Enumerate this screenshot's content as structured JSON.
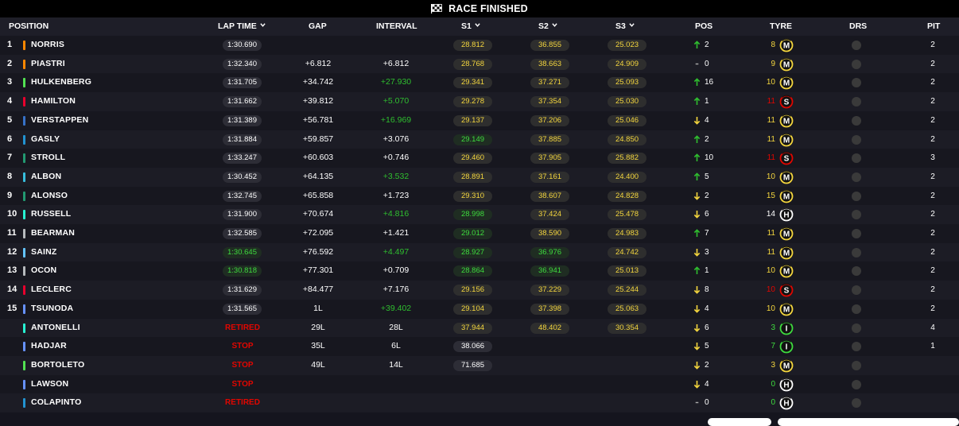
{
  "banner": {
    "title": "RACE FINISHED"
  },
  "columns": {
    "position": "POSITION",
    "lap_time": "LAP TIME",
    "gap": "GAP",
    "interval": "INTERVAL",
    "s1": "S1",
    "s2": "S2",
    "s3": "S3",
    "pos": "POS",
    "tyre": "TYRE",
    "drs": "DRS",
    "pit": "PIT"
  },
  "colors": {
    "green": "#2fbe2f",
    "yellow": "#f4d63e",
    "red": "#e10600",
    "medium": "#f4d63e",
    "soft": "#e10600",
    "hard": "#ffffff",
    "inter": "#3edb3e"
  },
  "rows": [
    {
      "pos": "1",
      "name": "NORRIS",
      "team": "#ff8700",
      "lap": "1:30.690",
      "lap_style": "normal",
      "gap": "",
      "interval": "",
      "interval_green": false,
      "s1": "28.812",
      "s1s": "y",
      "s2": "36.855",
      "s2s": "y",
      "s3": "25.023",
      "s3s": "y",
      "dir": "up",
      "change": "2",
      "tyre_laps": "8",
      "tyre_laps_color": "#f4d63e",
      "tyre": "M",
      "pit": "2"
    },
    {
      "pos": "2",
      "name": "PIASTRI",
      "team": "#ff8700",
      "lap": "1:32.340",
      "lap_style": "normal",
      "gap": "+6.812",
      "interval": "+6.812",
      "interval_green": false,
      "s1": "28.768",
      "s1s": "y",
      "s2": "38.663",
      "s2s": "y",
      "s3": "24.909",
      "s3s": "y",
      "dir": "none",
      "change": "0",
      "tyre_laps": "9",
      "tyre_laps_color": "#f4d63e",
      "tyre": "M",
      "pit": "2"
    },
    {
      "pos": "3",
      "name": "HULKENBERG",
      "team": "#52e252",
      "lap": "1:31.705",
      "lap_style": "normal",
      "gap": "+34.742",
      "interval": "+27.930",
      "interval_green": true,
      "s1": "29.341",
      "s1s": "y",
      "s2": "37.271",
      "s2s": "y",
      "s3": "25.093",
      "s3s": "y",
      "dir": "up",
      "change": "16",
      "tyre_laps": "10",
      "tyre_laps_color": "#f4d63e",
      "tyre": "M",
      "pit": "2"
    },
    {
      "pos": "4",
      "name": "HAMILTON",
      "team": "#e8002d",
      "lap": "1:31.662",
      "lap_style": "normal",
      "gap": "+39.812",
      "interval": "+5.070",
      "interval_green": true,
      "s1": "29.278",
      "s1s": "y",
      "s2": "37.354",
      "s2s": "y",
      "s3": "25.030",
      "s3s": "y",
      "dir": "up",
      "change": "1",
      "tyre_laps": "11",
      "tyre_laps_color": "#e10600",
      "tyre": "S",
      "pit": "2"
    },
    {
      "pos": "5",
      "name": "VERSTAPPEN",
      "team": "#3671c6",
      "lap": "1:31.389",
      "lap_style": "normal",
      "gap": "+56.781",
      "interval": "+16.969",
      "interval_green": true,
      "s1": "29.137",
      "s1s": "y",
      "s2": "37.206",
      "s2s": "y",
      "s3": "25.046",
      "s3s": "y",
      "dir": "down",
      "change": "4",
      "tyre_laps": "11",
      "tyre_laps_color": "#f4d63e",
      "tyre": "M",
      "pit": "2"
    },
    {
      "pos": "6",
      "name": "GASLY",
      "team": "#2293d1",
      "lap": "1:31.884",
      "lap_style": "normal",
      "gap": "+59.857",
      "interval": "+3.076",
      "interval_green": false,
      "s1": "29.149",
      "s1s": "g",
      "s2": "37.885",
      "s2s": "y",
      "s3": "24.850",
      "s3s": "y",
      "dir": "up",
      "change": "2",
      "tyre_laps": "11",
      "tyre_laps_color": "#f4d63e",
      "tyre": "M",
      "pit": "2"
    },
    {
      "pos": "7",
      "name": "STROLL",
      "team": "#229971",
      "lap": "1:33.247",
      "lap_style": "normal",
      "gap": "+60.603",
      "interval": "+0.746",
      "interval_green": false,
      "s1": "29.460",
      "s1s": "y",
      "s2": "37.905",
      "s2s": "y",
      "s3": "25.882",
      "s3s": "y",
      "dir": "up",
      "change": "10",
      "tyre_laps": "11",
      "tyre_laps_color": "#e10600",
      "tyre": "S",
      "pit": "3"
    },
    {
      "pos": "8",
      "name": "ALBON",
      "team": "#37bedd",
      "lap": "1:30.452",
      "lap_style": "normal",
      "gap": "+64.135",
      "interval": "+3.532",
      "interval_green": true,
      "s1": "28.891",
      "s1s": "y",
      "s2": "37.161",
      "s2s": "y",
      "s3": "24.400",
      "s3s": "y",
      "dir": "up",
      "change": "5",
      "tyre_laps": "10",
      "tyre_laps_color": "#f4d63e",
      "tyre": "M",
      "pit": "2"
    },
    {
      "pos": "9",
      "name": "ALONSO",
      "team": "#229971",
      "lap": "1:32.745",
      "lap_style": "normal",
      "gap": "+65.858",
      "interval": "+1.723",
      "interval_green": false,
      "s1": "29.310",
      "s1s": "y",
      "s2": "38.607",
      "s2s": "y",
      "s3": "24.828",
      "s3s": "y",
      "dir": "down",
      "change": "2",
      "tyre_laps": "15",
      "tyre_laps_color": "#f4d63e",
      "tyre": "M",
      "pit": "2"
    },
    {
      "pos": "10",
      "name": "RUSSELL",
      "team": "#27f4d2",
      "lap": "1:31.900",
      "lap_style": "normal",
      "gap": "+70.674",
      "interval": "+4.816",
      "interval_green": true,
      "s1": "28.998",
      "s1s": "g",
      "s2": "37.424",
      "s2s": "y",
      "s3": "25.478",
      "s3s": "y",
      "dir": "down",
      "change": "6",
      "tyre_laps": "14",
      "tyre_laps_color": "#ffffff",
      "tyre": "H",
      "pit": "2"
    },
    {
      "pos": "11",
      "name": "BEARMAN",
      "team": "#b6babd",
      "lap": "1:32.585",
      "lap_style": "normal",
      "gap": "+72.095",
      "interval": "+1.421",
      "interval_green": false,
      "s1": "29.012",
      "s1s": "g",
      "s2": "38.590",
      "s2s": "y",
      "s3": "24.983",
      "s3s": "y",
      "dir": "up",
      "change": "7",
      "tyre_laps": "11",
      "tyre_laps_color": "#f4d63e",
      "tyre": "M",
      "pit": "2"
    },
    {
      "pos": "12",
      "name": "SAINZ",
      "team": "#64c4ff",
      "lap": "1:30.645",
      "lap_style": "best",
      "gap": "+76.592",
      "interval": "+4.497",
      "interval_green": true,
      "s1": "28.927",
      "s1s": "g",
      "s2": "36.976",
      "s2s": "g",
      "s3": "24.742",
      "s3s": "y",
      "dir": "down",
      "change": "3",
      "tyre_laps": "11",
      "tyre_laps_color": "#f4d63e",
      "tyre": "M",
      "pit": "2"
    },
    {
      "pos": "13",
      "name": "OCON",
      "team": "#b6babd",
      "lap": "1:30.818",
      "lap_style": "best",
      "gap": "+77.301",
      "interval": "+0.709",
      "interval_green": false,
      "s1": "28.864",
      "s1s": "g",
      "s2": "36.941",
      "s2s": "g",
      "s3": "25.013",
      "s3s": "y",
      "dir": "up",
      "change": "1",
      "tyre_laps": "10",
      "tyre_laps_color": "#f4d63e",
      "tyre": "M",
      "pit": "2"
    },
    {
      "pos": "14",
      "name": "LECLERC",
      "team": "#e8002d",
      "lap": "1:31.629",
      "lap_style": "normal",
      "gap": "+84.477",
      "interval": "+7.176",
      "interval_green": false,
      "s1": "29.156",
      "s1s": "y",
      "s2": "37.229",
      "s2s": "y",
      "s3": "25.244",
      "s3s": "y",
      "dir": "down",
      "change": "8",
      "tyre_laps": "10",
      "tyre_laps_color": "#e10600",
      "tyre": "S",
      "pit": "2"
    },
    {
      "pos": "15",
      "name": "TSUNODA",
      "team": "#6692ff",
      "lap": "1:31.565",
      "lap_style": "normal",
      "gap": "1L",
      "interval": "+39.402",
      "interval_green": true,
      "s1": "29.104",
      "s1s": "y",
      "s2": "37.398",
      "s2s": "y",
      "s3": "25.063",
      "s3s": "y",
      "dir": "down",
      "change": "4",
      "tyre_laps": "10",
      "tyre_laps_color": "#f4d63e",
      "tyre": "M",
      "pit": "2"
    },
    {
      "pos": "",
      "name": "ANTONELLI",
      "team": "#27f4d2",
      "lap": "RETIRED",
      "lap_style": "status",
      "gap": "29L",
      "interval": "28L",
      "interval_green": false,
      "s1": "37.944",
      "s1s": "y",
      "s2": "48.402",
      "s2s": "y",
      "s3": "30.354",
      "s3s": "y",
      "dir": "down",
      "change": "6",
      "tyre_laps": "3",
      "tyre_laps_color": "#3edb3e",
      "tyre": "I",
      "pit": "4"
    },
    {
      "pos": "",
      "name": "HADJAR",
      "team": "#6692ff",
      "lap": "STOP",
      "lap_style": "status",
      "gap": "35L",
      "interval": "6L",
      "interval_green": false,
      "s1": "38.066",
      "s1s": "w",
      "s2": "",
      "s2s": "y",
      "s3": "",
      "s3s": "y",
      "dir": "down",
      "change": "5",
      "tyre_laps": "7",
      "tyre_laps_color": "#3edb3e",
      "tyre": "I",
      "pit": "1"
    },
    {
      "pos": "",
      "name": "BORTOLETO",
      "team": "#52e252",
      "lap": "STOP",
      "lap_style": "status",
      "gap": "49L",
      "interval": "14L",
      "interval_green": false,
      "s1": "71.685",
      "s1s": "w",
      "s2": "",
      "s2s": "y",
      "s3": "",
      "s3s": "y",
      "dir": "down",
      "change": "2",
      "tyre_laps": "3",
      "tyre_laps_color": "#f4d63e",
      "tyre": "M",
      "pit": ""
    },
    {
      "pos": "",
      "name": "LAWSON",
      "team": "#6692ff",
      "lap": "STOP",
      "lap_style": "status",
      "gap": "",
      "interval": "",
      "interval_green": false,
      "s1": "",
      "s1s": "y",
      "s2": "",
      "s2s": "y",
      "s3": "",
      "s3s": "y",
      "dir": "down",
      "change": "4",
      "tyre_laps": "0",
      "tyre_laps_color": "#3edb3e",
      "tyre": "H",
      "pit": ""
    },
    {
      "pos": "",
      "name": "COLAPINTO",
      "team": "#2293d1",
      "lap": "RETIRED",
      "lap_style": "status",
      "gap": "",
      "interval": "",
      "interval_green": false,
      "s1": "",
      "s1s": "y",
      "s2": "",
      "s2s": "y",
      "s3": "",
      "s3s": "y",
      "dir": "none",
      "change": "0",
      "tyre_laps": "0",
      "tyre_laps_color": "#3edb3e",
      "tyre": "H",
      "pit": ""
    }
  ]
}
